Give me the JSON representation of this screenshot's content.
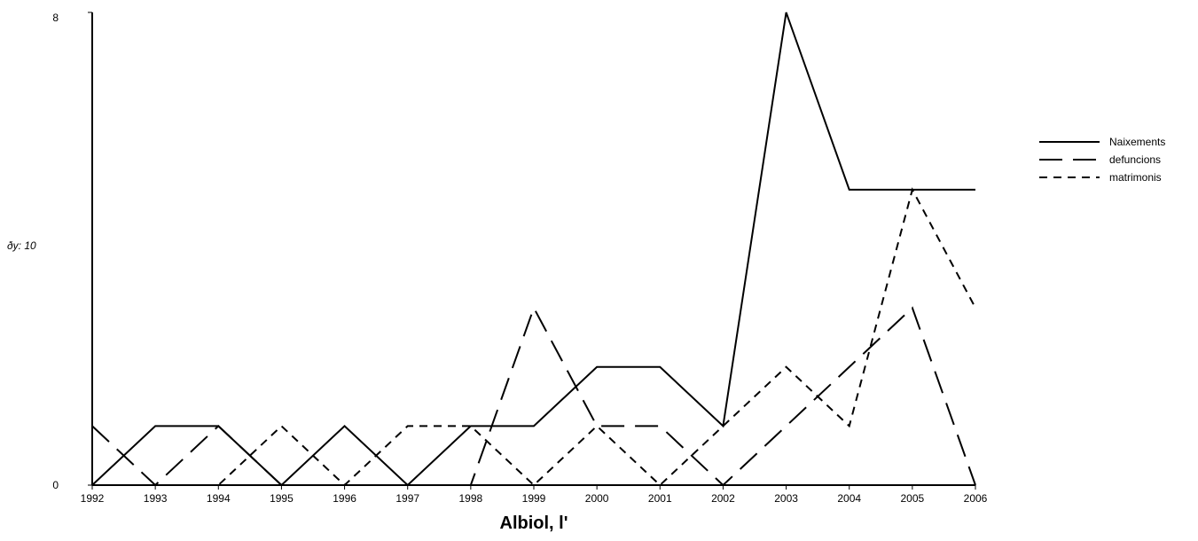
{
  "chart_data": {
    "type": "line",
    "title": "",
    "xlabel": "Albiol, l'",
    "ylabel": "",
    "side_note": "ðy: 10",
    "categories": [
      "1992",
      "1993",
      "1994",
      "1995",
      "1996",
      "1997",
      "1998",
      "1999",
      "2000",
      "2001",
      "2002",
      "2003",
      "2004",
      "2005",
      "2006"
    ],
    "ylim": [
      0,
      8
    ],
    "yticks": [
      "0",
      "8"
    ],
    "grid": false,
    "legend_position": "right",
    "series": [
      {
        "name": "Naixements",
        "style": "solid",
        "values": [
          0,
          1,
          1,
          0,
          1,
          0,
          1,
          1,
          2,
          2,
          1,
          8,
          5,
          5,
          5
        ]
      },
      {
        "name": "defuncions",
        "style": "long-dash",
        "values": [
          1,
          0,
          1,
          0,
          0,
          0,
          0,
          3,
          1,
          1,
          0,
          1,
          2,
          3,
          0
        ]
      },
      {
        "name": "matrimonis",
        "style": "short-dash",
        "values": [
          0,
          0,
          0,
          1,
          0,
          1,
          1,
          0,
          1,
          0,
          1,
          2,
          1,
          5,
          3
        ]
      }
    ],
    "line_color": "#000000"
  }
}
